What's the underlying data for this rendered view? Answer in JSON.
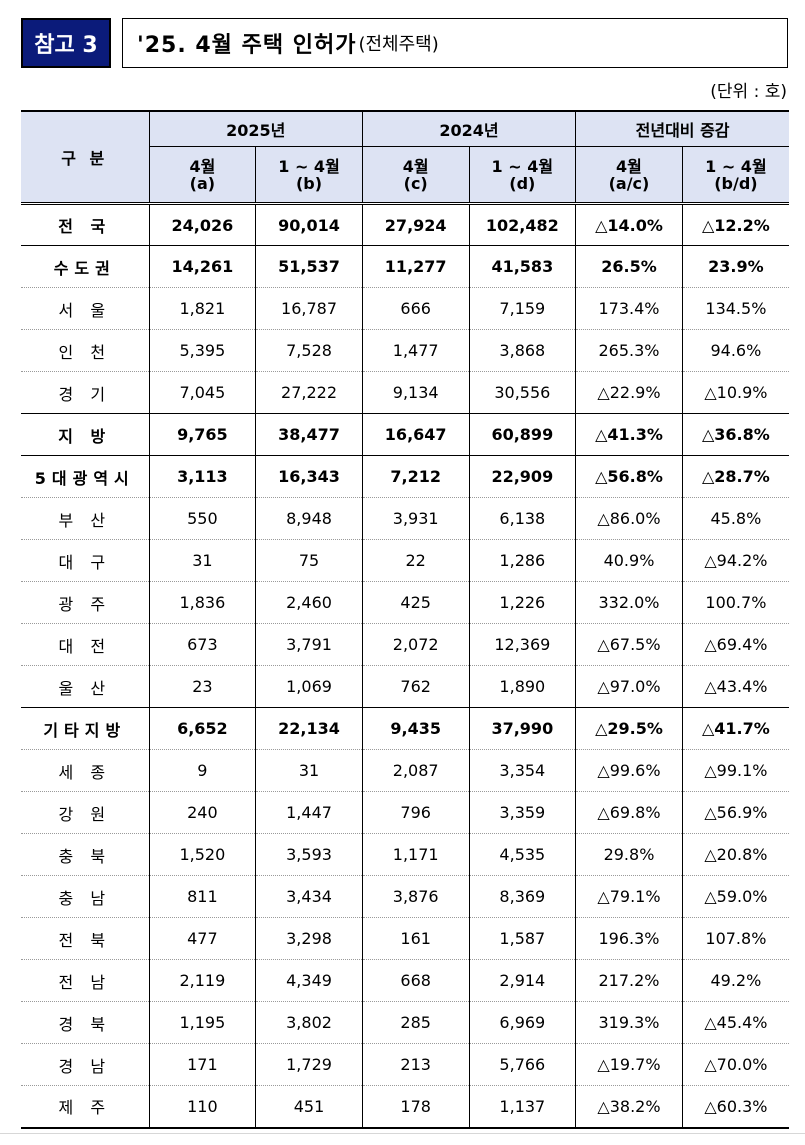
{
  "header": {
    "badge": "참고 3",
    "title": "'25. 4월 주택 인허가",
    "subtitle": "(전체주택)",
    "unit": "(단위 : 호)"
  },
  "table": {
    "columns": {
      "category": "구  분",
      "groups": [
        "2025년",
        "2024년",
        "전년대비 증감"
      ],
      "sub": [
        {
          "line1": "4월",
          "line2": "(a)"
        },
        {
          "line1": "1 ~ 4월",
          "line2": "(b)"
        },
        {
          "line1": "4월",
          "line2": "(c)"
        },
        {
          "line1": "1 ~ 4월",
          "line2": "(d)"
        },
        {
          "line1": "4월",
          "line2": "(a/c)"
        },
        {
          "line1": "1 ~ 4월",
          "line2": "(b/d)"
        }
      ]
    },
    "rows": [
      {
        "name": "전 국",
        "v": [
          "24,026",
          "90,014",
          "27,924",
          "102,482",
          "△14.0%",
          "△12.2%"
        ]
      },
      {
        "name": "수도권",
        "v": [
          "14,261",
          "51,537",
          "11,277",
          "41,583",
          "26.5%",
          "23.9%"
        ]
      },
      {
        "name": "서 울",
        "v": [
          "1,821",
          "16,787",
          "666",
          "7,159",
          "173.4%",
          "134.5%"
        ]
      },
      {
        "name": "인 천",
        "v": [
          "5,395",
          "7,528",
          "1,477",
          "3,868",
          "265.3%",
          "94.6%"
        ]
      },
      {
        "name": "경 기",
        "v": [
          "7,045",
          "27,222",
          "9,134",
          "30,556",
          "△22.9%",
          "△10.9%"
        ]
      },
      {
        "name": "지  방",
        "v": [
          "9,765",
          "38,477",
          "16,647",
          "60,899",
          "△41.3%",
          "△36.8%"
        ]
      },
      {
        "name": "5대광역시",
        "v": [
          "3,113",
          "16,343",
          "7,212",
          "22,909",
          "△56.8%",
          "△28.7%"
        ]
      },
      {
        "name": "부 산",
        "v": [
          "550",
          "8,948",
          "3,931",
          "6,138",
          "△86.0%",
          "45.8%"
        ]
      },
      {
        "name": "대 구",
        "v": [
          "31",
          "75",
          "22",
          "1,286",
          "40.9%",
          "△94.2%"
        ]
      },
      {
        "name": "광 주",
        "v": [
          "1,836",
          "2,460",
          "425",
          "1,226",
          "332.0%",
          "100.7%"
        ]
      },
      {
        "name": "대 전",
        "v": [
          "673",
          "3,791",
          "2,072",
          "12,369",
          "△67.5%",
          "△69.4%"
        ]
      },
      {
        "name": "울 산",
        "v": [
          "23",
          "1,069",
          "762",
          "1,890",
          "△97.0%",
          "△43.4%"
        ]
      },
      {
        "name": "기타지방",
        "v": [
          "6,652",
          "22,134",
          "9,435",
          "37,990",
          "△29.5%",
          "△41.7%"
        ]
      },
      {
        "name": "세 종",
        "v": [
          "9",
          "31",
          "2,087",
          "3,354",
          "△99.6%",
          "△99.1%"
        ]
      },
      {
        "name": "강 원",
        "v": [
          "240",
          "1,447",
          "796",
          "3,359",
          "△69.8%",
          "△56.9%"
        ]
      },
      {
        "name": "충 북",
        "v": [
          "1,520",
          "3,593",
          "1,171",
          "4,535",
          "29.8%",
          "△20.8%"
        ]
      },
      {
        "name": "충 남",
        "v": [
          "811",
          "3,434",
          "3,876",
          "8,369",
          "△79.1%",
          "△59.0%"
        ]
      },
      {
        "name": "전 북",
        "v": [
          "477",
          "3,298",
          "161",
          "1,587",
          "196.3%",
          "107.8%"
        ]
      },
      {
        "name": "전 남",
        "v": [
          "2,119",
          "4,349",
          "668",
          "2,914",
          "217.2%",
          "49.2%"
        ]
      },
      {
        "name": "경 북",
        "v": [
          "1,195",
          "3,802",
          "285",
          "6,969",
          "319.3%",
          "△45.4%"
        ]
      },
      {
        "name": "경 남",
        "v": [
          "171",
          "1,729",
          "213",
          "5,766",
          "△19.7%",
          "△70.0%"
        ]
      },
      {
        "name": "제 주",
        "v": [
          "110",
          "451",
          "178",
          "1,137",
          "△38.2%",
          "△60.3%"
        ]
      }
    ]
  },
  "colors": {
    "badge": "#0b1b7a",
    "header_fill": "#dde3f3"
  }
}
